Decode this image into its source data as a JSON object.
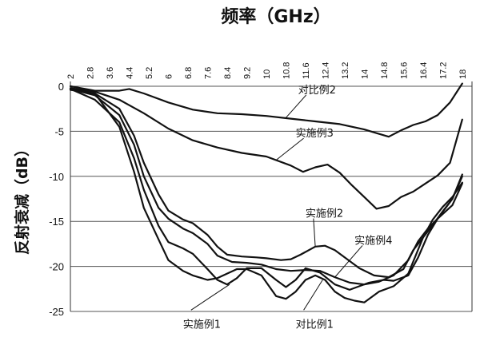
{
  "chart_data": {
    "type": "line",
    "title": "频率（GHz）",
    "xlabel": "频率（GHz）",
    "ylabel": "反射衰减（dB）",
    "x_axis_position": "top",
    "xticks": [
      "2",
      "2.8",
      "3.6",
      "4.4",
      "5.2",
      "6",
      "6.8",
      "7.6",
      "8.4",
      "9.2",
      "10",
      "10.8",
      "11.6",
      "12.4",
      "13.2",
      "14",
      "14.8",
      "15.6",
      "16.4",
      "17.2",
      "18"
    ],
    "xlim": [
      2,
      18.4
    ],
    "ylim": [
      -25,
      0
    ],
    "yticks": [
      "0",
      "-5",
      "-10",
      "-15",
      "-20",
      "-25"
    ],
    "grid": "horizontal",
    "series": [
      {
        "name": "对比例2",
        "x": [
          2,
          3,
          4,
          4.4,
          5,
          6,
          7,
          8,
          9,
          10,
          11,
          12,
          13,
          14,
          14.5,
          15,
          15.5,
          16,
          16.5,
          17,
          17.5,
          18
        ],
        "y": [
          0,
          -0.5,
          -0.5,
          -0.3,
          -0.8,
          -1.8,
          -2.6,
          -3.0,
          -3.1,
          -3.3,
          -3.6,
          -3.9,
          -4.2,
          -4.8,
          -5.2,
          -5.6,
          -4.9,
          -4.3,
          -3.9,
          -3.2,
          -1.8,
          0.3
        ]
      },
      {
        "name": "实施例3",
        "x": [
          2,
          3,
          4,
          5,
          6,
          7,
          8,
          9,
          10,
          11,
          11.5,
          12,
          12.5,
          13,
          13.5,
          14,
          14.5,
          15,
          15.5,
          16,
          16.5,
          17,
          17.5,
          18
        ],
        "y": [
          -0.2,
          -0.6,
          -1.5,
          -3.0,
          -4.7,
          -6.0,
          -6.8,
          -7.4,
          -7.8,
          -8.8,
          -9.5,
          -9.0,
          -8.7,
          -9.6,
          -11.0,
          -12.3,
          -13.6,
          -13.3,
          -12.3,
          -11.7,
          -10.8,
          -9.9,
          -8.5,
          -3.7
        ]
      },
      {
        "name": "实施例2",
        "x": [
          2,
          3,
          4,
          4.6,
          5,
          5.6,
          6,
          6.6,
          7,
          7.6,
          8,
          8.4,
          9,
          9.6,
          10,
          10.6,
          11,
          11.4,
          12,
          12.4,
          12.8,
          13.2,
          13.8,
          14.4,
          15,
          15.6,
          16,
          16.4,
          16.8,
          17.2,
          17.6,
          18
        ],
        "y": [
          -0.3,
          -0.8,
          -2.5,
          -5.5,
          -8.5,
          -12,
          -13.8,
          -14.8,
          -15.2,
          -16.5,
          -17.8,
          -18.7,
          -18.9,
          -19.0,
          -19.1,
          -19.3,
          -19.2,
          -18.7,
          -17.8,
          -17.7,
          -18.2,
          -19.0,
          -20.2,
          -21.0,
          -21.2,
          -20.3,
          -18.2,
          -16.8,
          -15.4,
          -13.9,
          -12.5,
          -9.8
        ]
      },
      {
        "name": "实施例4",
        "x": [
          2,
          3,
          4,
          4.6,
          5,
          5.6,
          6,
          6.6,
          7,
          7.6,
          8,
          8.6,
          9.2,
          9.8,
          10.4,
          11,
          11.6,
          12.2,
          12.8,
          13.4,
          14,
          14.6,
          15.2,
          15.8,
          16.2,
          16.6,
          17,
          17.6,
          18
        ],
        "y": [
          -0.3,
          -1.0,
          -3.2,
          -6.5,
          -10,
          -13.5,
          -14.7,
          -15.8,
          -16.3,
          -17.5,
          -18.8,
          -19.5,
          -19.6,
          -19.8,
          -20.3,
          -20.5,
          -20.4,
          -20.5,
          -21.2,
          -21.8,
          -22.0,
          -21.7,
          -21.0,
          -19.3,
          -17.2,
          -15.8,
          -14.7,
          -12.5,
          -10.0
        ]
      },
      {
        "name": "实施例1",
        "x": [
          2,
          3,
          4,
          4.6,
          5,
          5.6,
          6,
          6.6,
          7,
          7.6,
          8,
          8.4,
          8.8,
          9.2,
          9.8,
          10.4,
          10.8,
          11.2,
          11.6,
          12.2,
          12.8,
          13.4,
          13.8,
          14.2,
          14.8,
          15.2,
          15.8,
          16.2,
          16.6,
          17,
          17.6,
          18
        ],
        "y": [
          -0.3,
          -1.5,
          -4,
          -8,
          -11.5,
          -15.5,
          -17.3,
          -18,
          -18.6,
          -20.3,
          -21.5,
          -22,
          -21.3,
          -20.2,
          -20.2,
          -21.5,
          -22.3,
          -21.5,
          -20.2,
          -20.7,
          -22,
          -22.6,
          -22.2,
          -21.8,
          -21.5,
          -21.6,
          -21.0,
          -19.0,
          -16.5,
          -14.7,
          -13.2,
          -10.8
        ]
      },
      {
        "name": "对比例1",
        "x": [
          2,
          3,
          4,
          4.6,
          5,
          5.6,
          6,
          6.6,
          7,
          7.6,
          8,
          8.4,
          8.8,
          9.2,
          9.8,
          10.4,
          10.8,
          11.2,
          11.6,
          12,
          12.4,
          12.8,
          13.2,
          13.6,
          14,
          14.6,
          15.2,
          15.8,
          16.4,
          16.8,
          17.2,
          17.6,
          18
        ],
        "y": [
          -0.4,
          -0.8,
          -4.5,
          -9.5,
          -13.5,
          -17,
          -19.3,
          -20.5,
          -21,
          -21.5,
          -21.3,
          -20.8,
          -20.3,
          -20.3,
          -21.0,
          -23.3,
          -23.6,
          -22.8,
          -21.5,
          -21.0,
          -21.5,
          -22.8,
          -23.5,
          -23.8,
          -24.0,
          -22.8,
          -22.2,
          -20.8,
          -16.8,
          -14.8,
          -13.4,
          -12.3,
          -10.7
        ]
      }
    ],
    "annotations": [
      {
        "text": "对比例2",
        "series": "对比例2",
        "x": 10.8,
        "y": -3.5,
        "label_x": 11.3,
        "label_y": -0.8
      },
      {
        "text": "实施例3",
        "series": "实施例3",
        "x": 10.4,
        "y": -8.2,
        "label_x": 11.2,
        "label_y": -5.6
      },
      {
        "text": "实施例2",
        "series": "实施例2",
        "x": 12.0,
        "y": -17.8,
        "label_x": 11.6,
        "label_y": -14.5
      },
      {
        "text": "实施例4",
        "series": "实施例4",
        "x": 12.8,
        "y": -21.2,
        "label_x": 13.6,
        "label_y": -17.5
      },
      {
        "text": "实施例1",
        "series": "实施例1",
        "x": 8.5,
        "y": -22.0,
        "label_x": 6.6,
        "label_y": -26.8
      },
      {
        "text": "对比例1",
        "series": "对比例1",
        "x": 12.3,
        "y": -21.5,
        "label_x": 11.2,
        "label_y": -26.8
      }
    ]
  }
}
